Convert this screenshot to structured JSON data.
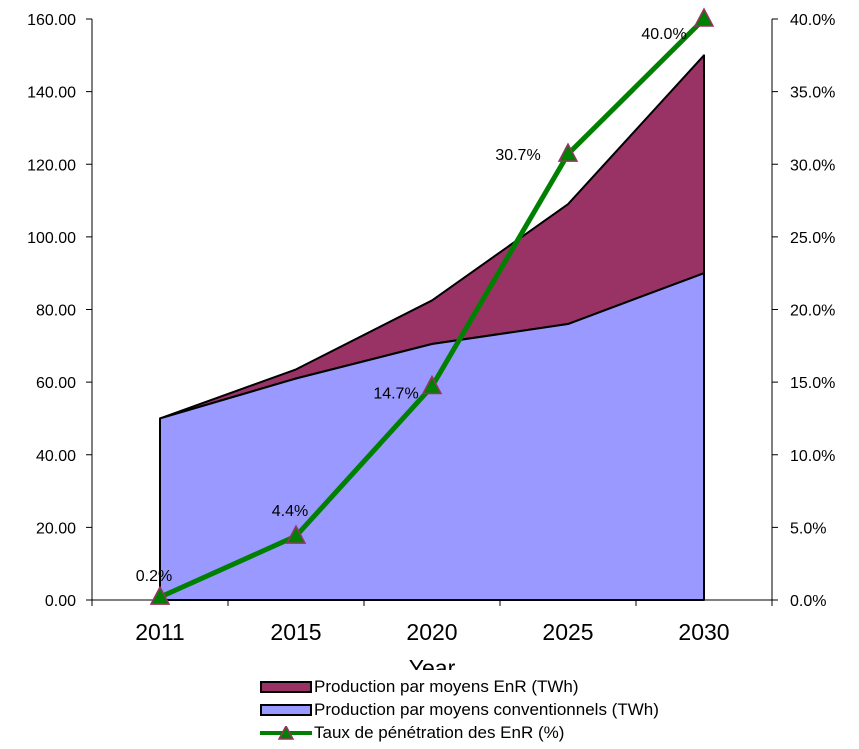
{
  "chart_data": {
    "type": "area",
    "categories": [
      "2011",
      "2015",
      "2020",
      "2025",
      "2030"
    ],
    "xlabel": "Year",
    "ylim": [
      0,
      160
    ],
    "y_ticks": [
      "0.00",
      "20.00",
      "40.00",
      "60.00",
      "80.00",
      "100.00",
      "120.00",
      "140.00",
      "160.00"
    ],
    "y2lim": [
      0,
      40
    ],
    "y2_ticks": [
      "0.0%",
      "5.0%",
      "10.0%",
      "15.0%",
      "20.0%",
      "25.0%",
      "30.0%",
      "35.0%",
      "40.0%"
    ],
    "legend_position": "bottom",
    "series": [
      {
        "name": "Production par moyens conventionnels (TWh)",
        "type": "area",
        "axis": "left",
        "color": "#9999ff",
        "values": [
          50,
          61,
          70.5,
          76,
          90
        ]
      },
      {
        "name": "Production par moyens EnR (TWh)",
        "type": "area-stacked",
        "axis": "left",
        "color": "#993366",
        "values": [
          0,
          2.5,
          12,
          33,
          60
        ]
      },
      {
        "name": "Taux de pénétration des EnR (%)",
        "type": "line",
        "axis": "right",
        "color": "#008000",
        "marker_color": "#993366",
        "values": [
          0.2,
          4.4,
          14.7,
          30.7,
          40.0
        ],
        "data_labels": [
          "0.2%",
          "4.4%",
          "14.7%",
          "30.7%",
          "40.0%"
        ]
      }
    ]
  }
}
